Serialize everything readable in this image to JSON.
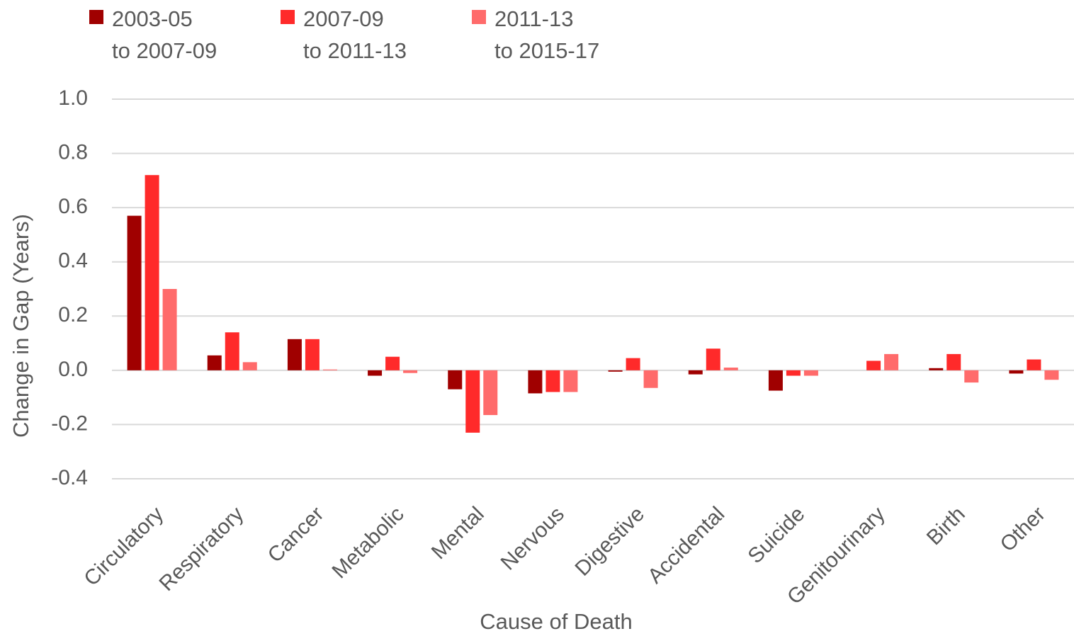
{
  "chart_data": {
    "type": "bar",
    "x_label": "Cause of Death",
    "y_label": "Change in Gap (Years)",
    "categories": [
      "Circulatory",
      "Respiratory",
      "Cancer",
      "Metabolic",
      "Mental",
      "Nervous",
      "Digestive",
      "Accidental",
      "Suicide",
      "Genitourinary",
      "Birth",
      "Other"
    ],
    "series": [
      {
        "name": "2003-05\nto 2007-09",
        "color": "#a00000",
        "values": [
          0.57,
          0.055,
          0.115,
          -0.02,
          -0.07,
          -0.085,
          -0.005,
          -0.015,
          -0.075,
          0,
          0.008,
          -0.012
        ]
      },
      {
        "name": "2007-09\nto 2011-13",
        "color": "#ff2a2a",
        "values": [
          0.72,
          0.14,
          0.115,
          0.05,
          -0.23,
          -0.08,
          0.045,
          0.08,
          -0.02,
          0.035,
          0.06,
          0.04
        ]
      },
      {
        "name": "2011-13\nto 2015-17",
        "color": "#ff6b6b",
        "values": [
          0.3,
          0.03,
          0.003,
          -0.01,
          -0.165,
          -0.08,
          -0.065,
          0.01,
          -0.02,
          0.06,
          -0.045,
          -0.035
        ]
      }
    ],
    "ylim": [
      -0.4,
      1.0
    ],
    "yticks": [
      {
        "value": -0.4,
        "label": "-0.4"
      },
      {
        "value": -0.2,
        "label": "-0.2"
      },
      {
        "value": 0,
        "label": "0.0"
      },
      {
        "value": 0.2,
        "label": "0.2"
      },
      {
        "value": 0.4,
        "label": "0.4"
      },
      {
        "value": 0.6,
        "label": "0.6"
      },
      {
        "value": 0.8,
        "label": "0.8"
      },
      {
        "value": 1.0,
        "label": "1.0"
      }
    ],
    "grid": true,
    "legend": "top"
  }
}
